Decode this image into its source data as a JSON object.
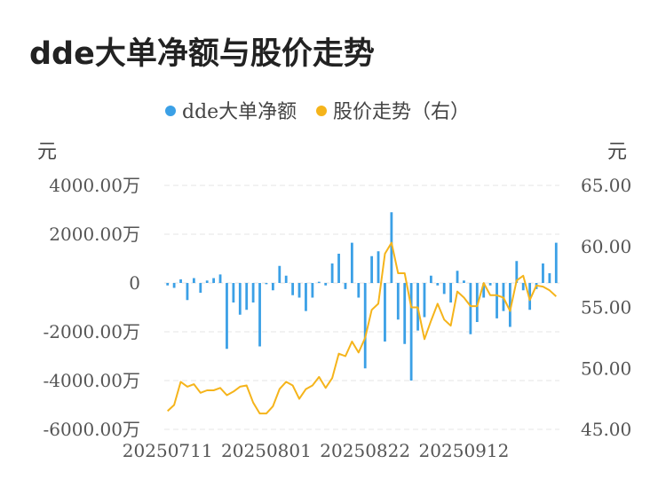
{
  "title": "dde大单净额与股价走势",
  "chart_data": {
    "type": "bar+line",
    "title": "dde大单净额与股价走势",
    "legend": {
      "placement": "top-center",
      "entries": [
        {
          "name": "dde大单净额",
          "color": "#3BA0E6"
        },
        {
          "name": "股价走势（右）",
          "color": "#F5B41B"
        }
      ]
    },
    "left_axis": {
      "unit": "元",
      "min": -6000,
      "max": 4000,
      "ticks": [
        4000,
        2000,
        0,
        -2000,
        -4000,
        -6000
      ],
      "tick_labels": [
        "4000.00万",
        "2000.00万",
        "0",
        "-2000.00万",
        "-4000.00万",
        "-6000.00万"
      ]
    },
    "right_axis": {
      "unit": "元",
      "min": 45,
      "max": 65,
      "ticks": [
        65,
        60,
        55,
        50,
        45
      ],
      "tick_labels": [
        "65.00",
        "60.00",
        "55.00",
        "50.00",
        "45.00"
      ]
    },
    "x_tick_labels": [
      {
        "index": 0,
        "label": "20250711"
      },
      {
        "index": 15,
        "label": "20250801"
      },
      {
        "index": 30,
        "label": "20250822"
      },
      {
        "index": 45,
        "label": "20250912"
      }
    ],
    "grid": true,
    "series": [
      {
        "name": "dde大单净额",
        "type": "bar",
        "axis": "left",
        "color": "#3BA0E6",
        "values": [
          -100,
          -200,
          150,
          -700,
          200,
          -400,
          100,
          200,
          350,
          -2700,
          -800,
          -1300,
          -1100,
          -800,
          -2600,
          -50,
          -300,
          700,
          300,
          -500,
          -600,
          -1150,
          -600,
          50,
          -100,
          800,
          1200,
          -250,
          1650,
          -600,
          -3500,
          1100,
          1300,
          -2400,
          2900,
          -1500,
          -2500,
          -4000,
          -1950,
          -1400,
          300,
          -100,
          -450,
          -800,
          500,
          100,
          -2100,
          -1600,
          -600,
          -100,
          -1450,
          -1150,
          -1800,
          900,
          -300,
          -1100,
          -250,
          800,
          400,
          1650
        ]
      },
      {
        "name": "股价走势（右）",
        "type": "line",
        "axis": "right",
        "color": "#F5B41B",
        "values": [
          46.5,
          47.0,
          48.9,
          48.5,
          48.7,
          48.0,
          48.2,
          48.2,
          48.4,
          47.8,
          48.1,
          48.5,
          48.6,
          47.2,
          46.3,
          46.3,
          46.9,
          48.3,
          48.9,
          48.6,
          47.5,
          48.3,
          48.6,
          49.3,
          48.4,
          49.2,
          51.2,
          51.0,
          52.2,
          51.3,
          52.5,
          54.8,
          55.3,
          59.4,
          60.3,
          57.8,
          57.8,
          55.0,
          55.0,
          52.4,
          53.9,
          55.3,
          54.0,
          53.5,
          56.3,
          55.8,
          55.1,
          55.1,
          57.0,
          56.0,
          56.0,
          55.8,
          54.7,
          57.2,
          57.6,
          55.6,
          56.8,
          56.7,
          56.4,
          55.9
        ]
      }
    ]
  }
}
